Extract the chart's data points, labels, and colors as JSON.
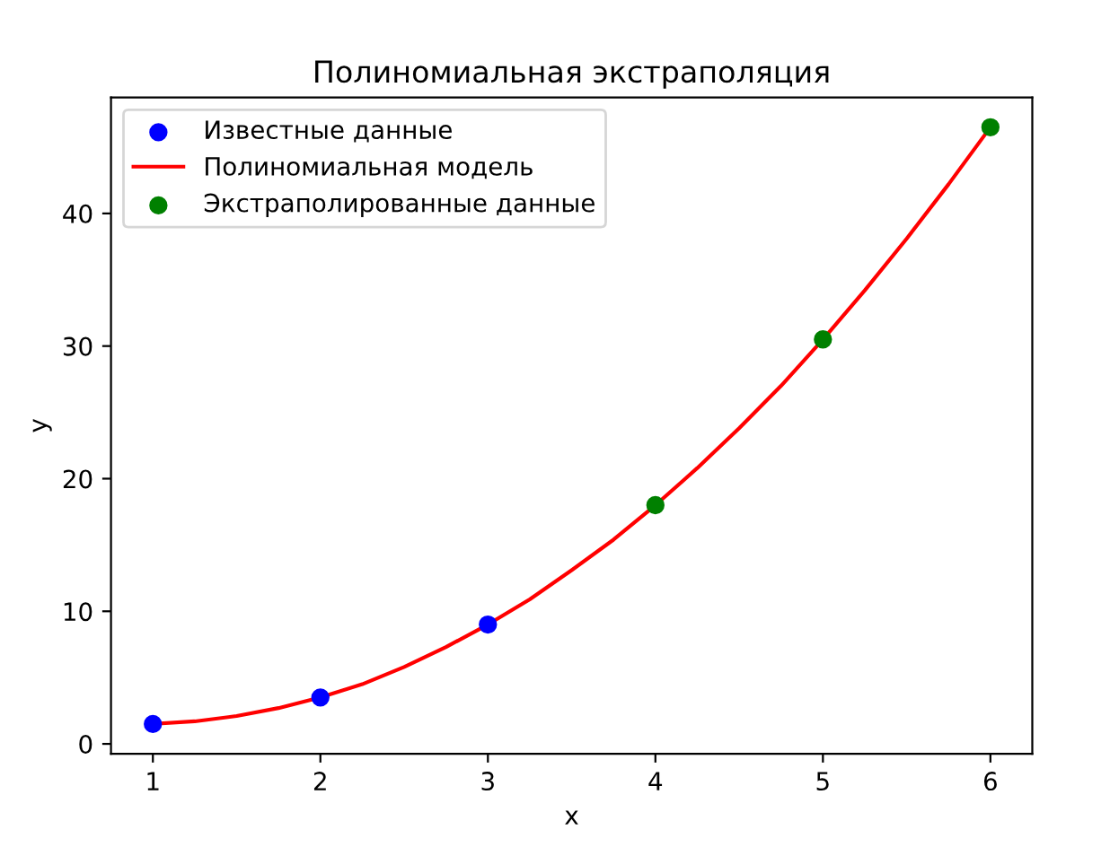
{
  "chart_data": {
    "type": "scatter",
    "title": "Полиномиальная экстраполяция",
    "xlabel": "x",
    "ylabel": "y",
    "xlim": [
      0.75,
      6.25
    ],
    "ylim": [
      -0.75,
      48.75
    ],
    "xticks": [
      1,
      2,
      3,
      4,
      5,
      6
    ],
    "yticks": [
      0,
      10,
      20,
      30,
      40
    ],
    "grid": false,
    "legend": "top left",
    "series": [
      {
        "name": "Известные данные",
        "marker": "circle",
        "color": "#0000ff",
        "x": [
          1,
          2,
          3
        ],
        "values": [
          1.5,
          3.5,
          9
        ]
      },
      {
        "name": "Полиномиальная модель",
        "type": "line",
        "color": "#ff0000",
        "line_style": "solid",
        "x": [
          1,
          1.25,
          1.5,
          1.75,
          2,
          2.25,
          2.5,
          2.75,
          3,
          3.25,
          3.5,
          3.75,
          4,
          4.25,
          4.5,
          4.75,
          5,
          5.25,
          5.5,
          5.75,
          6
        ],
        "values": [
          1.5,
          1.7,
          2.1,
          2.7,
          3.5,
          4.5,
          5.8,
          7.3,
          9,
          10.9,
          13.1,
          15.4,
          18,
          20.8,
          23.8,
          27,
          30.5,
          34.2,
          38.1,
          42.2,
          46.5
        ]
      },
      {
        "name": "Экстраполированные данные",
        "marker": "circle",
        "color": "#008000",
        "x": [
          4,
          5,
          6
        ],
        "values": [
          18,
          30.5,
          46.5
        ]
      }
    ]
  }
}
